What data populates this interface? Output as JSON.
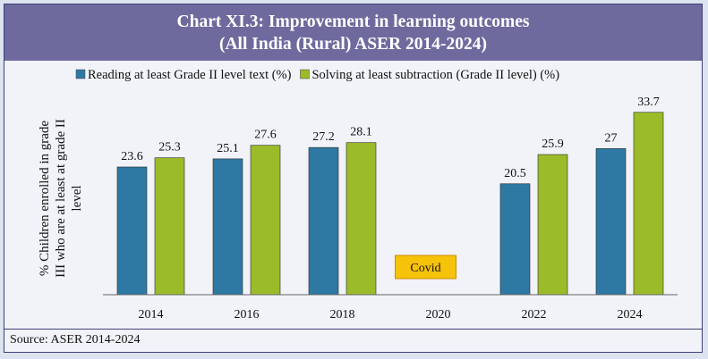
{
  "title_line1": "Chart XI.3: Improvement in learning outcomes",
  "title_line2": "(All India (Rural) ASER 2014-2024)",
  "source": "Source: ASER 2014-2024",
  "colors": {
    "title_bg": "#6e6a9e",
    "reading": "#2e79a3",
    "subtraction": "#9bbb28",
    "covid_fill": "#f7c20a",
    "covid_border": "#cc8b00"
  },
  "chart_data": {
    "type": "bar",
    "categories": [
      "2014",
      "2016",
      "2018",
      "2020",
      "2022",
      "2024"
    ],
    "series": [
      {
        "name": "Reading at least Grade II level text (%)",
        "values": [
          23.6,
          25.1,
          27.2,
          null,
          20.5,
          27
        ],
        "color": "#2e79a3"
      },
      {
        "name": "Solving at least subtraction (Grade II level) (%)",
        "values": [
          25.3,
          27.6,
          28.1,
          null,
          25.9,
          33.7
        ],
        "color": "#9bbb28"
      }
    ],
    "value_labels": [
      [
        "23.6",
        "25.1",
        "27.2",
        "",
        "20.5",
        "27"
      ],
      [
        "25.3",
        "27.6",
        "28.1",
        "",
        "25.9",
        "33.7"
      ]
    ],
    "ylabel_lines": [
      "% Children enrolled in grade",
      "III who are at least at grade II",
      "level"
    ],
    "annotation": {
      "category": "2020",
      "text": "Covid"
    },
    "legend_position": "top",
    "ylim": [
      0,
      40
    ],
    "grid": false
  }
}
